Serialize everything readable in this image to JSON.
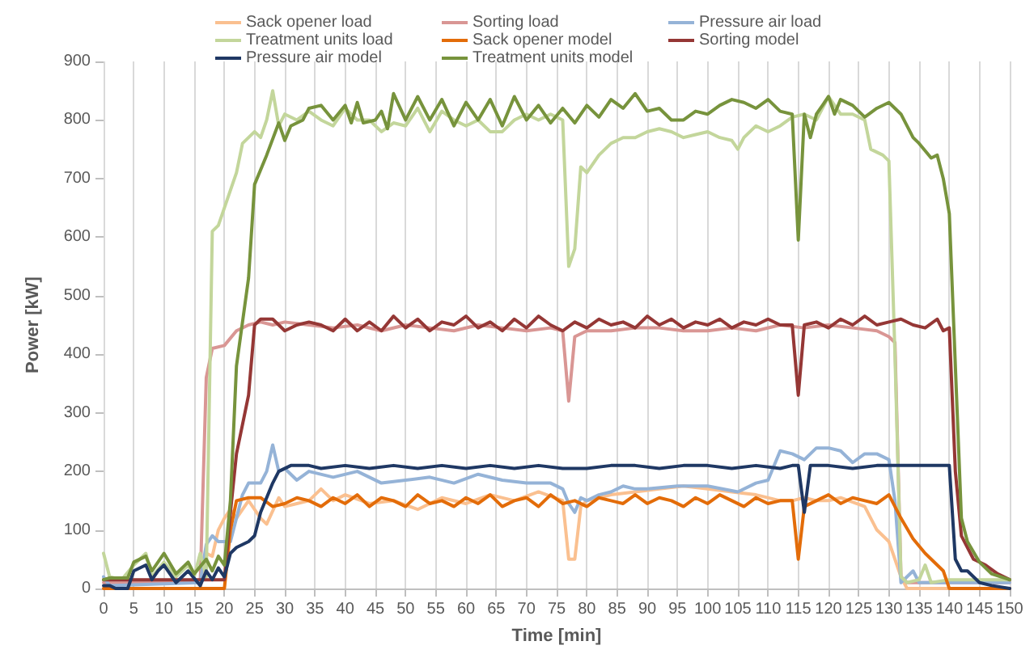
{
  "chart_data": {
    "type": "line",
    "xlabel": "Time [min]",
    "ylabel": "Power [kW]",
    "xlim": [
      0,
      150
    ],
    "xticks": [
      0,
      5,
      10,
      15,
      20,
      25,
      30,
      35,
      40,
      45,
      50,
      55,
      60,
      65,
      70,
      75,
      80,
      85,
      90,
      95,
      100,
      105,
      110,
      115,
      120,
      125,
      130,
      135,
      140,
      145,
      150
    ],
    "ylim": [
      0,
      900
    ],
    "yticks": [
      0,
      100,
      200,
      300,
      400,
      500,
      600,
      700,
      800,
      900
    ],
    "grid": "x",
    "legend": "top",
    "marker": "none",
    "line_style": "solid",
    "series": [
      {
        "name": "Sack opener load",
        "color": "#fac090",
        "x": [
          0,
          16,
          17,
          18,
          19,
          20,
          21,
          22,
          24,
          26,
          27,
          29,
          30,
          32,
          34,
          36,
          38,
          40,
          44,
          48,
          52,
          56,
          60,
          64,
          68,
          72,
          76,
          77,
          78,
          79,
          80,
          84,
          88,
          92,
          96,
          100,
          104,
          108,
          112,
          114,
          116,
          118,
          120,
          122,
          126,
          128,
          130,
          132,
          133,
          150
        ],
        "values": [
          0,
          0,
          60,
          55,
          100,
          120,
          135,
          120,
          150,
          120,
          110,
          155,
          140,
          145,
          150,
          170,
          150,
          160,
          145,
          150,
          135,
          155,
          145,
          160,
          150,
          165,
          150,
          50,
          50,
          140,
          150,
          160,
          165,
          170,
          175,
          170,
          165,
          160,
          150,
          150,
          155,
          150,
          150,
          155,
          140,
          100,
          80,
          20,
          0,
          0
        ]
      },
      {
        "name": "Sorting load",
        "color": "#d99694",
        "x": [
          0,
          16,
          17,
          18,
          20,
          22,
          24,
          26,
          28,
          30,
          34,
          38,
          42,
          46,
          50,
          54,
          58,
          62,
          66,
          70,
          74,
          76,
          77,
          78,
          80,
          84,
          88,
          92,
          96,
          100,
          104,
          108,
          112,
          116,
          120,
          124,
          128,
          130,
          131,
          132,
          133,
          150
        ],
        "values": [
          10,
          10,
          360,
          410,
          415,
          440,
          450,
          455,
          450,
          455,
          450,
          445,
          450,
          440,
          450,
          445,
          440,
          450,
          445,
          440,
          445,
          440,
          320,
          430,
          440,
          440,
          445,
          445,
          440,
          440,
          445,
          440,
          450,
          445,
          450,
          445,
          440,
          430,
          420,
          20,
          10,
          10
        ]
      },
      {
        "name": "Pressure air load",
        "color": "#95b3d7",
        "x": [
          0,
          1,
          16,
          17,
          18,
          19,
          21,
          23,
          24,
          26,
          27,
          28,
          29,
          30,
          32,
          34,
          38,
          42,
          46,
          50,
          54,
          58,
          62,
          66,
          70,
          74,
          76,
          77,
          78,
          79,
          80,
          82,
          84,
          86,
          88,
          90,
          95,
          100,
          105,
          108,
          110,
          112,
          114,
          116,
          118,
          120,
          122,
          124,
          126,
          128,
          130,
          131,
          132,
          134,
          135,
          150
        ],
        "values": [
          20,
          5,
          10,
          75,
          90,
          80,
          80,
          160,
          180,
          180,
          200,
          245,
          200,
          205,
          185,
          200,
          190,
          200,
          180,
          185,
          190,
          180,
          195,
          185,
          180,
          180,
          170,
          145,
          130,
          155,
          150,
          160,
          165,
          175,
          170,
          170,
          175,
          175,
          165,
          180,
          185,
          235,
          230,
          220,
          240,
          240,
          235,
          215,
          230,
          230,
          220,
          150,
          10,
          30,
          10,
          10
        ]
      },
      {
        "name": "Treatment units load",
        "color": "#c3d69b",
        "x": [
          0,
          1,
          3,
          5,
          7,
          8,
          10,
          12,
          14,
          15,
          16,
          17,
          18,
          19,
          20,
          22,
          23,
          25,
          26,
          27,
          28,
          29,
          30,
          32,
          34,
          36,
          38,
          40,
          42,
          44,
          46,
          48,
          50,
          52,
          54,
          56,
          58,
          60,
          62,
          64,
          66,
          68,
          70,
          72,
          74,
          76,
          77,
          78,
          79,
          80,
          82,
          84,
          86,
          88,
          90,
          92,
          94,
          96,
          98,
          100,
          102,
          104,
          105,
          106,
          108,
          110,
          112,
          114,
          116,
          118,
          120,
          122,
          124,
          126,
          127,
          129,
          130,
          131,
          132,
          133,
          135,
          136,
          137,
          140,
          150
        ],
        "values": [
          60,
          20,
          15,
          40,
          60,
          20,
          45,
          20,
          40,
          20,
          60,
          20,
          610,
          620,
          650,
          710,
          760,
          780,
          770,
          800,
          850,
          790,
          810,
          800,
          815,
          800,
          790,
          820,
          800,
          800,
          780,
          795,
          790,
          820,
          780,
          815,
          800,
          790,
          800,
          780,
          780,
          800,
          810,
          800,
          810,
          800,
          550,
          580,
          720,
          710,
          740,
          760,
          770,
          770,
          780,
          785,
          780,
          770,
          775,
          780,
          770,
          765,
          750,
          770,
          790,
          780,
          790,
          805,
          810,
          800,
          840,
          810,
          810,
          800,
          750,
          740,
          730,
          400,
          20,
          10,
          15,
          40,
          10,
          15,
          15
        ]
      },
      {
        "name": "Sack opener model",
        "color": "#e36c09",
        "x": [
          0,
          20,
          21,
          22,
          24,
          26,
          28,
          30,
          32,
          34,
          36,
          38,
          40,
          42,
          44,
          46,
          48,
          50,
          52,
          54,
          56,
          58,
          60,
          62,
          64,
          66,
          68,
          70,
          72,
          74,
          76,
          78,
          80,
          82,
          84,
          86,
          88,
          90,
          92,
          94,
          96,
          98,
          100,
          102,
          104,
          106,
          108,
          110,
          112,
          114,
          115,
          116,
          118,
          120,
          122,
          124,
          126,
          128,
          130,
          132,
          134,
          136,
          138,
          139,
          140,
          150
        ],
        "values": [
          0,
          0,
          100,
          150,
          155,
          155,
          140,
          145,
          155,
          150,
          140,
          155,
          145,
          160,
          140,
          155,
          150,
          140,
          160,
          145,
          150,
          140,
          155,
          145,
          160,
          140,
          150,
          155,
          140,
          160,
          145,
          150,
          140,
          155,
          150,
          145,
          160,
          145,
          155,
          150,
          140,
          155,
          145,
          160,
          150,
          140,
          155,
          145,
          150,
          150,
          50,
          140,
          150,
          160,
          145,
          155,
          150,
          145,
          160,
          120,
          85,
          60,
          40,
          30,
          0,
          0
        ]
      },
      {
        "name": "Sorting model",
        "color": "#953735",
        "x": [
          0,
          20,
          21,
          22,
          24,
          25,
          26,
          28,
          30,
          32,
          34,
          36,
          38,
          40,
          42,
          44,
          46,
          48,
          50,
          52,
          54,
          56,
          58,
          60,
          62,
          64,
          66,
          68,
          70,
          72,
          74,
          76,
          78,
          80,
          82,
          84,
          86,
          88,
          90,
          92,
          94,
          96,
          98,
          100,
          102,
          104,
          106,
          108,
          110,
          112,
          114,
          115,
          116,
          118,
          120,
          122,
          124,
          126,
          128,
          130,
          132,
          134,
          136,
          138,
          139,
          140,
          141,
          142,
          144,
          146,
          148,
          150
        ],
        "values": [
          15,
          15,
          130,
          230,
          330,
          450,
          460,
          460,
          440,
          450,
          455,
          450,
          440,
          460,
          440,
          455,
          440,
          465,
          445,
          460,
          440,
          455,
          450,
          465,
          445,
          455,
          440,
          460,
          445,
          465,
          450,
          440,
          455,
          445,
          460,
          450,
          455,
          445,
          465,
          450,
          460,
          445,
          455,
          450,
          460,
          445,
          455,
          450,
          460,
          450,
          450,
          330,
          450,
          455,
          445,
          460,
          450,
          465,
          450,
          455,
          460,
          450,
          445,
          460,
          440,
          445,
          200,
          90,
          50,
          40,
          25,
          15
        ]
      },
      {
        "name": "Pressure air model",
        "color": "#1f3864",
        "x": [
          0,
          1,
          2,
          4,
          5,
          7,
          8,
          9,
          10,
          12,
          14,
          16,
          17,
          18,
          19,
          20,
          21,
          22,
          24,
          25,
          26,
          28,
          29,
          31,
          34,
          36,
          40,
          44,
          48,
          52,
          56,
          60,
          64,
          68,
          72,
          76,
          80,
          84,
          88,
          92,
          96,
          100,
          104,
          108,
          112,
          114,
          115,
          116,
          117,
          120,
          124,
          128,
          132,
          136,
          140,
          141,
          142,
          143,
          145,
          147,
          150
        ],
        "values": [
          5,
          5,
          0,
          0,
          30,
          40,
          15,
          30,
          40,
          10,
          30,
          5,
          30,
          15,
          35,
          20,
          60,
          70,
          80,
          90,
          130,
          180,
          200,
          210,
          210,
          205,
          210,
          205,
          210,
          205,
          210,
          205,
          210,
          205,
          210,
          205,
          205,
          210,
          210,
          205,
          210,
          210,
          205,
          210,
          205,
          210,
          210,
          130,
          210,
          210,
          205,
          210,
          210,
          210,
          210,
          50,
          30,
          30,
          10,
          5,
          0
        ]
      },
      {
        "name": "Treatment units model",
        "color": "#77933c",
        "x": [
          0,
          1,
          4,
          5,
          7,
          8,
          10,
          12,
          14,
          15,
          17,
          18,
          19,
          20,
          21,
          22,
          24,
          25,
          27,
          29,
          30,
          31,
          33,
          34,
          36,
          38,
          40,
          41,
          42,
          43,
          45,
          46,
          47,
          48,
          50,
          52,
          54,
          56,
          58,
          60,
          62,
          64,
          66,
          68,
          70,
          72,
          74,
          76,
          78,
          80,
          82,
          84,
          86,
          88,
          90,
          92,
          94,
          96,
          98,
          100,
          102,
          104,
          106,
          108,
          110,
          112,
          114,
          115,
          116,
          117,
          118,
          120,
          121,
          122,
          124,
          126,
          128,
          130,
          132,
          134,
          135,
          137,
          138,
          139,
          140,
          141,
          142,
          143,
          145,
          147,
          150
        ],
        "values": [
          15,
          18,
          18,
          45,
          55,
          30,
          60,
          25,
          45,
          25,
          50,
          30,
          55,
          40,
          150,
          380,
          530,
          690,
          740,
          795,
          765,
          790,
          800,
          820,
          825,
          800,
          825,
          795,
          830,
          795,
          800,
          815,
          785,
          845,
          800,
          840,
          800,
          835,
          790,
          830,
          800,
          835,
          790,
          840,
          800,
          825,
          795,
          820,
          795,
          825,
          805,
          835,
          820,
          845,
          815,
          820,
          800,
          800,
          815,
          810,
          825,
          835,
          830,
          820,
          835,
          815,
          810,
          595,
          810,
          770,
          810,
          840,
          810,
          835,
          825,
          805,
          820,
          830,
          810,
          770,
          760,
          735,
          740,
          700,
          640,
          380,
          120,
          80,
          45,
          25,
          15
        ]
      }
    ]
  }
}
